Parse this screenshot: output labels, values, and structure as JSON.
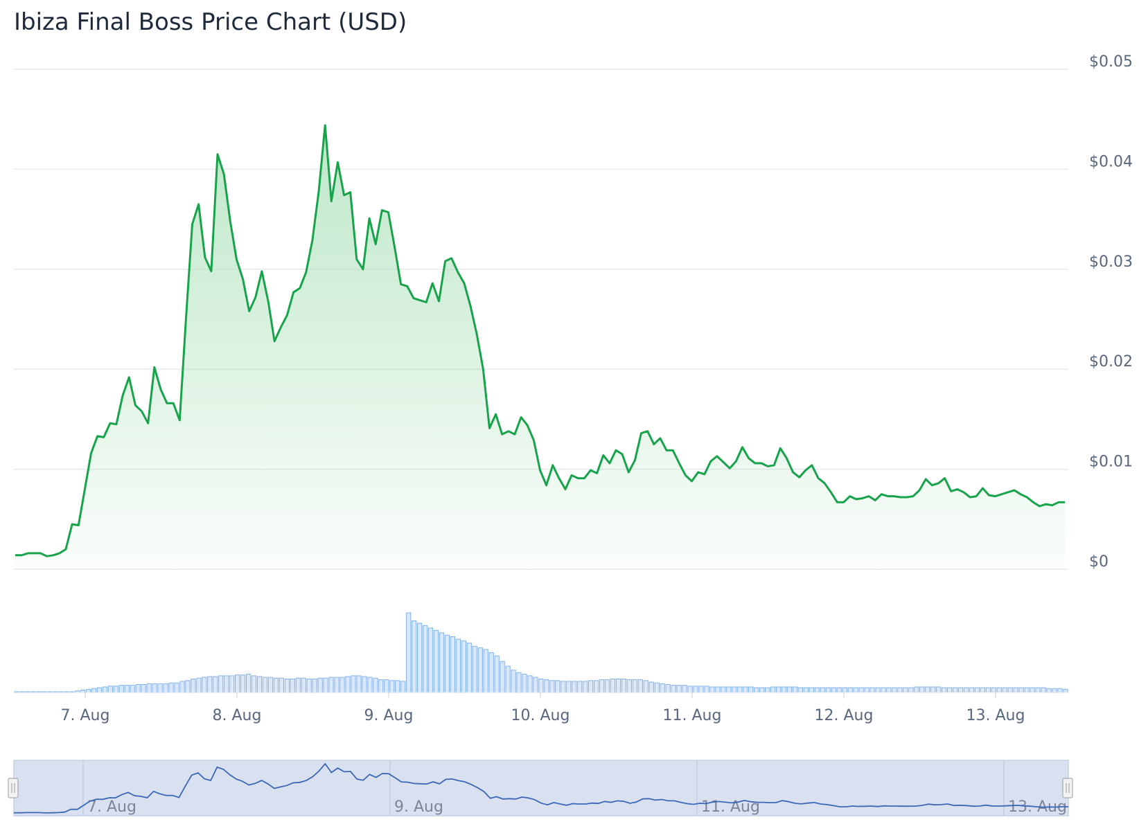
{
  "chart_data": {
    "type": "area",
    "title": "Ibiza Final Boss Price Chart (USD)",
    "y_axis": {
      "ticks": [
        0,
        0.01,
        0.02,
        0.03,
        0.04,
        0.05
      ],
      "tick_labels": [
        "$0",
        "$0.01",
        "$0.02",
        "$0.03",
        "$0.04",
        "$0.05"
      ],
      "ylim": [
        0,
        0.05
      ]
    },
    "x_axis": {
      "tick_labels": [
        "7. Aug",
        "8. Aug",
        "9. Aug",
        "10. Aug",
        "11. Aug",
        "12. Aug",
        "13. Aug"
      ]
    },
    "navigator_labels": [
      "7. Aug",
      "9. Aug",
      "11. Aug",
      "13. Aug"
    ],
    "colors": {
      "line": "#16a34a",
      "area": "#bfe8c9",
      "volume": "#7fb0ee",
      "navigator_line": "#3a66b8",
      "navigator_fill": "#d9e1f1"
    },
    "grid": true,
    "series": [
      {
        "values": [
          0.0014,
          0.0014,
          0.0016,
          0.0016,
          0.0016,
          0.0013,
          0.0014,
          0.0016,
          0.002,
          0.0045,
          0.0044,
          0.008,
          0.0116,
          0.0133,
          0.0132,
          0.0146,
          0.0145,
          0.0174,
          0.0192,
          0.0164,
          0.0158,
          0.0146,
          0.0202,
          0.018,
          0.0166,
          0.0166,
          0.0149,
          0.025,
          0.0345,
          0.0365,
          0.0312,
          0.0298,
          0.0415,
          0.0395,
          0.0348,
          0.031,
          0.029,
          0.0258,
          0.0272,
          0.0298,
          0.0268,
          0.0228,
          0.0242,
          0.0254,
          0.0277,
          0.0281,
          0.0297,
          0.0329,
          0.0378,
          0.0444,
          0.0368,
          0.0407,
          0.0374,
          0.0377,
          0.031,
          0.03,
          0.0351,
          0.0325,
          0.0359,
          0.0357,
          0.0322,
          0.0285,
          0.0283,
          0.0271,
          0.0269,
          0.0267,
          0.0286,
          0.0268,
          0.0308,
          0.0311,
          0.0297,
          0.0286,
          0.0263,
          0.0235,
          0.02,
          0.0141,
          0.0155,
          0.0135,
          0.0138,
          0.0135,
          0.0152,
          0.0144,
          0.0129,
          0.0099,
          0.0084,
          0.0104,
          0.0091,
          0.008,
          0.0094,
          0.0091,
          0.0091,
          0.0099,
          0.0096,
          0.0114,
          0.0106,
          0.0119,
          0.0115,
          0.0097,
          0.0109,
          0.0136,
          0.0138,
          0.0125,
          0.0131,
          0.0119,
          0.0119,
          0.0106,
          0.0094,
          0.0088,
          0.0097,
          0.0095,
          0.0108,
          0.0113,
          0.0107,
          0.0101,
          0.0108,
          0.0122,
          0.0111,
          0.0106,
          0.0106,
          0.0103,
          0.0104,
          0.0121,
          0.0111,
          0.0097,
          0.0092,
          0.0099,
          0.0104,
          0.0091,
          0.0086,
          0.0077,
          0.0067,
          0.0067,
          0.0073,
          0.007,
          0.0071,
          0.0073,
          0.0069,
          0.0075,
          0.0073,
          0.0073,
          0.0072,
          0.0072,
          0.0073,
          0.0079,
          0.009,
          0.0084,
          0.0086,
          0.0091,
          0.0078,
          0.008,
          0.0077,
          0.0072,
          0.0073,
          0.0081,
          0.0074,
          0.0073,
          0.0075,
          0.0077,
          0.0079,
          0.0075,
          0.0072,
          0.0067,
          0.0063,
          0.0065,
          0.0064,
          0.0067,
          0.0067
        ]
      },
      {
        "volume_relative": [
          0.01,
          0.01,
          0.01,
          0.01,
          0.01,
          0.01,
          0.01,
          0.01,
          0.01,
          0.01,
          0.01,
          0.02,
          0.03,
          0.04,
          0.05,
          0.06,
          0.07,
          0.08,
          0.08,
          0.09,
          0.09,
          0.09,
          0.1,
          0.1,
          0.11,
          0.11,
          0.11,
          0.11,
          0.12,
          0.12,
          0.14,
          0.15,
          0.17,
          0.18,
          0.19,
          0.2,
          0.2,
          0.21,
          0.21,
          0.21,
          0.22,
          0.22,
          0.23,
          0.21,
          0.2,
          0.19,
          0.19,
          0.18,
          0.18,
          0.17,
          0.17,
          0.18,
          0.18,
          0.17,
          0.17,
          0.18,
          0.18,
          0.19,
          0.19,
          0.19,
          0.2,
          0.21,
          0.21,
          0.2,
          0.19,
          0.18,
          0.16,
          0.16,
          0.15,
          0.15,
          0.14,
          1.0,
          0.9,
          0.87,
          0.84,
          0.81,
          0.78,
          0.75,
          0.72,
          0.7,
          0.67,
          0.65,
          0.62,
          0.58,
          0.56,
          0.54,
          0.5,
          0.46,
          0.39,
          0.33,
          0.28,
          0.25,
          0.23,
          0.21,
          0.19,
          0.17,
          0.16,
          0.15,
          0.15,
          0.14,
          0.14,
          0.14,
          0.14,
          0.14,
          0.15,
          0.15,
          0.16,
          0.16,
          0.17,
          0.17,
          0.17,
          0.16,
          0.16,
          0.16,
          0.15,
          0.13,
          0.12,
          0.11,
          0.1,
          0.09,
          0.09,
          0.09,
          0.08,
          0.08,
          0.08,
          0.08,
          0.07,
          0.07,
          0.07,
          0.07,
          0.07,
          0.07,
          0.07,
          0.07,
          0.06,
          0.06,
          0.06,
          0.07,
          0.07,
          0.07,
          0.07,
          0.07,
          0.06,
          0.06,
          0.06,
          0.06,
          0.06,
          0.06,
          0.06,
          0.06,
          0.06,
          0.06,
          0.06,
          0.06,
          0.06,
          0.06,
          0.06,
          0.06,
          0.06,
          0.06,
          0.06,
          0.06,
          0.06,
          0.07,
          0.07,
          0.07,
          0.07,
          0.07,
          0.06,
          0.06,
          0.06,
          0.06,
          0.06,
          0.06,
          0.06,
          0.06,
          0.06,
          0.06,
          0.06,
          0.06,
          0.06,
          0.06,
          0.06,
          0.06,
          0.06,
          0.06,
          0.06,
          0.05,
          0.05,
          0.05,
          0.04
        ]
      }
    ]
  }
}
